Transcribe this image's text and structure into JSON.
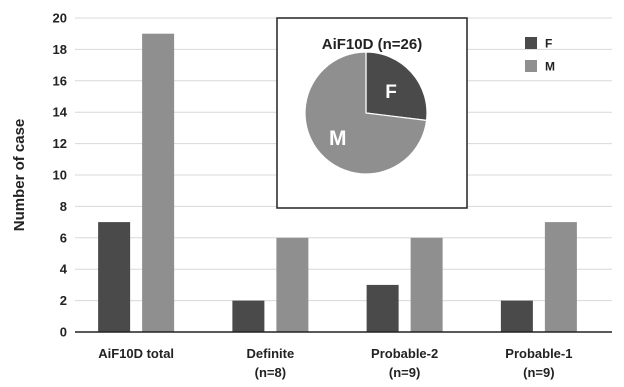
{
  "chart_data": {
    "type": "bar",
    "ylabel": "Number of case",
    "ylim": [
      0,
      20
    ],
    "yticks": [
      0,
      2,
      4,
      6,
      8,
      10,
      12,
      14,
      16,
      18,
      20
    ],
    "grid": "horizontal",
    "categories": [
      {
        "line1": "AiF10D total",
        "line2": ""
      },
      {
        "line1": "Definite",
        "line2": "(n=8)"
      },
      {
        "line1": "Probable-2",
        "line2": "(n=9)"
      },
      {
        "line1": "Probable-1",
        "line2": "(n=9)"
      }
    ],
    "series": [
      {
        "name": "F",
        "color": "#4a4a4a",
        "values": [
          7,
          2,
          3,
          2
        ]
      },
      {
        "name": "M",
        "color": "#8f8f8f",
        "values": [
          19,
          6,
          6,
          7
        ]
      }
    ],
    "legend": {
      "placement": "top-right"
    },
    "inset": {
      "type": "pie",
      "title": "AiF10D (n=26)",
      "slices": [
        {
          "label": "F",
          "value": 7,
          "color": "#4a4a4a"
        },
        {
          "label": "M",
          "value": 19,
          "color": "#8f8f8f"
        }
      ]
    }
  }
}
